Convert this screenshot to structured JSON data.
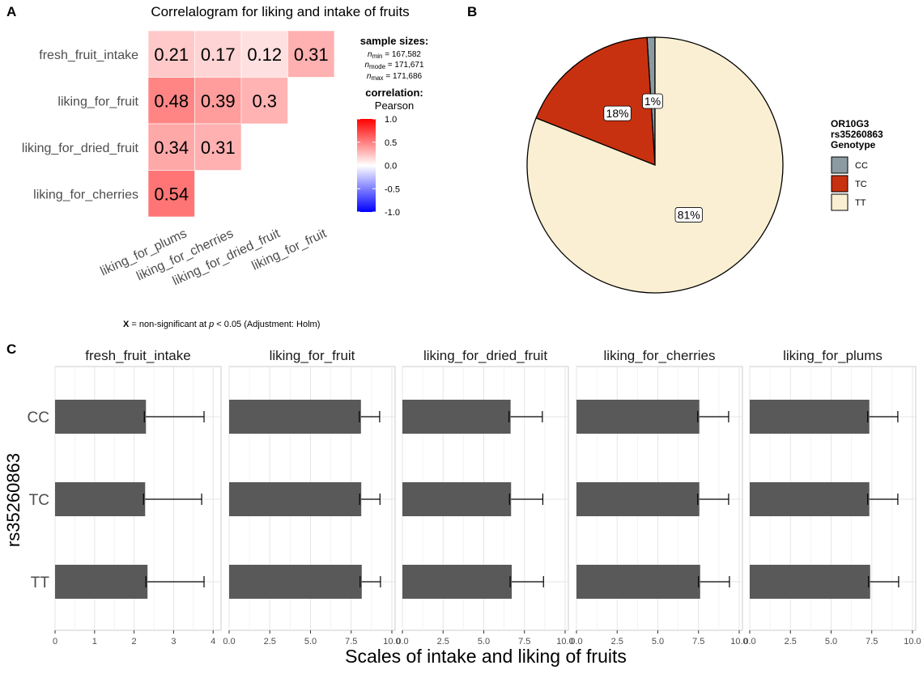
{
  "panels": {
    "a_label": "A",
    "b_label": "B",
    "c_label": "C"
  },
  "chart_data": [
    {
      "type": "heatmap",
      "title": "Correlalogram for liking and intake of fruits",
      "row_labels": [
        "fresh_fruit_intake",
        "liking_for_fruit",
        "liking_for_dried_fruit",
        "liking_for_cherries"
      ],
      "col_labels": [
        "liking_for_plums",
        "liking_for_cherries",
        "liking_for_dried_fruit",
        "liking_for_fruit"
      ],
      "cells": [
        [
          0.21,
          0.17,
          0.12,
          0.31
        ],
        [
          0.48,
          0.39,
          0.3,
          null
        ],
        [
          0.34,
          0.31,
          null,
          null
        ],
        [
          0.54,
          null,
          null,
          null
        ]
      ],
      "cell_labels": [
        [
          "0.21",
          "0.17",
          "0.12",
          "0.31"
        ],
        [
          "0.48",
          "0.39",
          "0.3",
          ""
        ],
        [
          "0.34",
          "0.31",
          "",
          ""
        ],
        [
          "0.54",
          "",
          "",
          ""
        ]
      ],
      "colorbar": {
        "min": -1.0,
        "max": 1.0,
        "ticks": [
          "1.0",
          "0.5",
          "0.0",
          "-0.5",
          "-1.0"
        ],
        "low_color": "#0000ff",
        "mid_color": "#ffffff",
        "high_color": "#ff0000"
      },
      "sample_sizes": {
        "heading": "sample sizes:",
        "min": {
          "label": "n",
          "sub": "min",
          "value": " = 167,582"
        },
        "mode": {
          "label": "n",
          "sub": "mode",
          "value": " = 171,671"
        },
        "max": {
          "label": "n",
          "sub": "max",
          "value": " = 171,686"
        }
      },
      "correlation": {
        "heading": "correlation:",
        "method": "Pearson"
      },
      "footnote": {
        "bold": "X",
        "pre": " = non-significant at ",
        "p": "p",
        "post": " < 0.05 (Adjustment: Holm)"
      }
    },
    {
      "type": "pie",
      "slices": [
        {
          "label": "CC",
          "value": 1,
          "text": "1%",
          "color": "#8C9BA1"
        },
        {
          "label": "TC",
          "value": 18,
          "text": "18%",
          "color": "#C8310F"
        },
        {
          "label": "TT",
          "value": 81,
          "text": "81%",
          "color": "#FBEFD3"
        }
      ],
      "legend_title": [
        "OR10G3",
        "rs35260863",
        "Genotype"
      ],
      "legend_placement": "right"
    },
    {
      "type": "bar",
      "orientation": "horizontal",
      "xlabel": "Scales of intake and liking of fruits",
      "ylabel": "rs35260863",
      "categories": [
        "CC",
        "TC",
        "TT"
      ],
      "bar_color": "#595959",
      "facets": [
        {
          "title": "fresh_fruit_intake",
          "xlim": [
            0,
            4.2
          ],
          "ticks": [
            0,
            1,
            2,
            3,
            4
          ],
          "tick_labels": [
            "0",
            "1",
            "2",
            "3",
            "4"
          ],
          "values": [
            2.3,
            2.28,
            2.34
          ],
          "errors": [
            1.47,
            1.43,
            1.43
          ]
        },
        {
          "title": "liking_for_fruit",
          "xlim": [
            0,
            10.2
          ],
          "ticks": [
            0,
            2.5,
            5,
            7.5,
            10
          ],
          "tick_labels": [
            "0.0",
            "2.5",
            "5.0",
            "7.5",
            "10.0"
          ],
          "values": [
            8.1,
            8.12,
            8.15
          ],
          "errors": [
            1.15,
            1.15,
            1.15
          ]
        },
        {
          "title": "liking_for_dried_fruit",
          "xlim": [
            0,
            10.2
          ],
          "ticks": [
            0,
            2.5,
            5,
            7.5,
            10
          ],
          "tick_labels": [
            "0.0",
            "2.5",
            "5.0",
            "7.5",
            "10.0"
          ],
          "values": [
            6.65,
            6.68,
            6.72
          ],
          "errors": [
            1.95,
            1.95,
            1.95
          ]
        },
        {
          "title": "liking_for_cherries",
          "xlim": [
            0,
            10.2
          ],
          "ticks": [
            0,
            2.5,
            5,
            7.5,
            10
          ],
          "tick_labels": [
            "0.0",
            "2.5",
            "5.0",
            "7.5",
            "10.0"
          ],
          "values": [
            7.55,
            7.55,
            7.6
          ],
          "errors": [
            1.8,
            1.8,
            1.8
          ]
        },
        {
          "title": "liking_for_plums",
          "xlim": [
            0,
            10.2
          ],
          "ticks": [
            0,
            2.5,
            5,
            7.5,
            10
          ],
          "tick_labels": [
            "0.0",
            "2.5",
            "5.0",
            "7.5",
            "10.0"
          ],
          "values": [
            7.35,
            7.35,
            7.4
          ],
          "errors": [
            1.75,
            1.75,
            1.75
          ]
        }
      ]
    }
  ]
}
